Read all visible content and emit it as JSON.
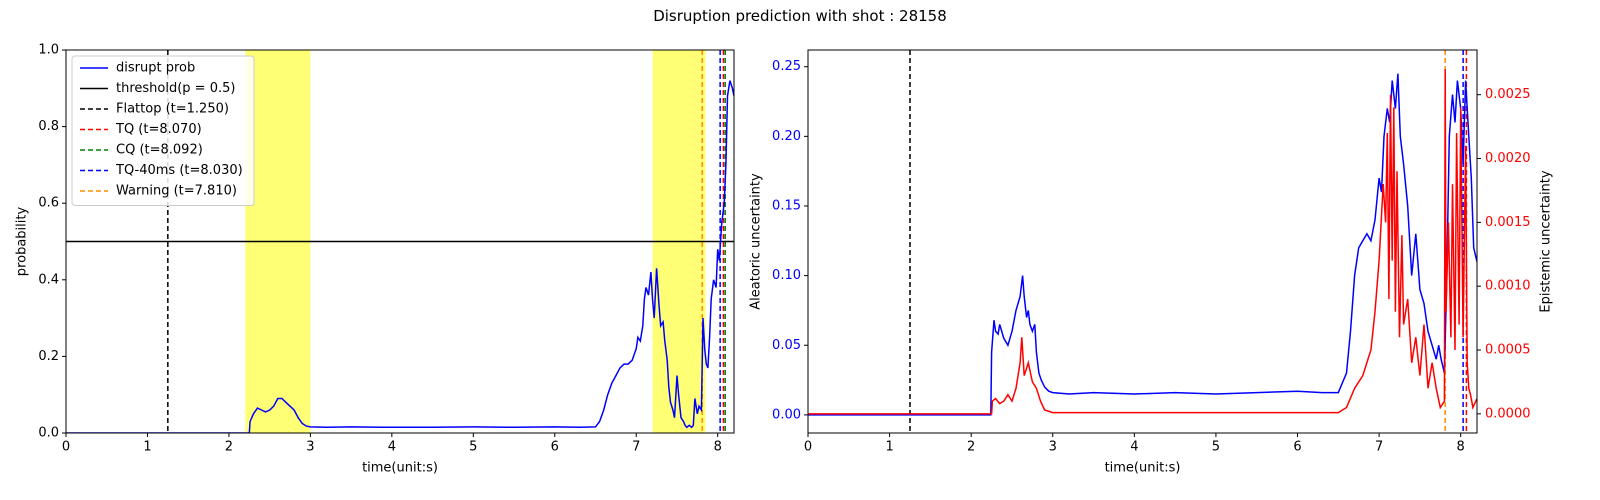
{
  "figure": {
    "title": "Disruption prediction with shot : 28158"
  },
  "colors": {
    "prob": "#0000ff",
    "threshold": "#000000",
    "flattop": "#000000",
    "tq": "#ff0000",
    "cq": "#008000",
    "tq40": "#0000ff",
    "warning": "#ff8c00",
    "highlight": "#ffff66",
    "aleatoric": "#0000ff",
    "epistemic": "#ff0000"
  },
  "chart_data": [
    {
      "type": "line",
      "xlabel": "time(unit:s)",
      "ylabel": "probability",
      "xlim": [
        0,
        8.2
      ],
      "ylim": [
        0,
        1.0
      ],
      "xticks": [
        "0",
        "1",
        "2",
        "3",
        "4",
        "5",
        "6",
        "7",
        "8"
      ],
      "yticks": [
        "0.0",
        "0.2",
        "0.4",
        "0.6",
        "0.8",
        "1.0"
      ],
      "highlight_spans": [
        [
          2.2,
          3.0
        ],
        [
          7.2,
          7.85
        ]
      ],
      "legend_position": "upper-left",
      "legend": [
        {
          "label": "disrupt prob",
          "style": "solid",
          "color": "#0000ff"
        },
        {
          "label": "threshold(p = 0.5)",
          "style": "solid",
          "color": "#000000"
        },
        {
          "label": "Flattop (t=1.250)",
          "style": "dashed",
          "color": "#000000"
        },
        {
          "label": "TQ (t=8.070)",
          "style": "dashed",
          "color": "#ff0000"
        },
        {
          "label": "CQ (t=8.092)",
          "style": "dashed",
          "color": "#008000"
        },
        {
          "label": "TQ-40ms (t=8.030)",
          "style": "dashed",
          "color": "#0000ff"
        },
        {
          "label": "Warning (t=7.810)",
          "style": "dashed",
          "color": "#ff8c00"
        }
      ],
      "threshold": 0.5,
      "vlines": [
        {
          "x": 1.25,
          "color": "#000000"
        },
        {
          "x": 7.81,
          "color": "#ff8c00"
        },
        {
          "x": 8.03,
          "color": "#0000ff"
        },
        {
          "x": 8.07,
          "color": "#ff0000"
        },
        {
          "x": 8.092,
          "color": "#008000"
        }
      ],
      "series": [
        {
          "x": [
            0,
            2.25,
            2.26,
            2.3,
            2.35,
            2.4,
            2.45,
            2.5,
            2.55,
            2.6,
            2.65,
            2.7,
            2.75,
            2.8,
            2.85,
            2.9,
            2.95,
            3.0,
            3.2,
            3.5,
            4.0,
            4.5,
            5.0,
            5.5,
            6.0,
            6.3,
            6.5,
            6.55,
            6.6,
            6.65,
            6.7,
            6.75,
            6.8,
            6.85,
            6.9,
            6.95,
            7.0,
            7.02,
            7.05,
            7.08,
            7.1,
            7.12,
            7.15,
            7.18,
            7.2,
            7.22,
            7.25,
            7.28,
            7.3,
            7.33,
            7.35,
            7.38,
            7.4,
            7.42,
            7.45,
            7.47,
            7.5,
            7.52,
            7.55,
            7.58,
            7.6,
            7.62,
            7.65,
            7.68,
            7.7,
            7.72,
            7.75,
            7.77,
            7.8,
            7.82,
            7.84,
            7.86,
            7.88,
            7.9,
            7.92,
            7.95,
            7.98,
            8.0,
            8.02,
            8.05,
            8.08,
            8.1,
            8.12,
            8.15,
            8.18,
            8.2
          ],
          "values": [
            0,
            0,
            0.03,
            0.05,
            0.065,
            0.06,
            0.055,
            0.06,
            0.07,
            0.09,
            0.09,
            0.08,
            0.07,
            0.06,
            0.04,
            0.025,
            0.018,
            0.016,
            0.015,
            0.016,
            0.015,
            0.015,
            0.016,
            0.015,
            0.016,
            0.015,
            0.016,
            0.03,
            0.06,
            0.1,
            0.13,
            0.15,
            0.17,
            0.18,
            0.18,
            0.19,
            0.22,
            0.25,
            0.24,
            0.28,
            0.35,
            0.38,
            0.36,
            0.42,
            0.35,
            0.3,
            0.43,
            0.33,
            0.28,
            0.29,
            0.24,
            0.19,
            0.12,
            0.08,
            0.06,
            0.04,
            0.15,
            0.1,
            0.04,
            0.03,
            0.02,
            0.015,
            0.02,
            0.015,
            0.02,
            0.09,
            0.05,
            0.07,
            0.06,
            0.3,
            0.22,
            0.18,
            0.17,
            0.25,
            0.35,
            0.4,
            0.38,
            0.48,
            0.45,
            0.55,
            0.6,
            0.7,
            0.88,
            0.92,
            0.9,
            0.88
          ]
        }
      ]
    },
    {
      "type": "line",
      "xlabel": "time(unit:s)",
      "ylabel": "Aleatoric uncertainty",
      "ylabel_right": "Epistemic uncertainty",
      "xlim": [
        0,
        8.2
      ],
      "ylim": [
        -0.013,
        0.262
      ],
      "ylim_right": [
        -0.00015,
        0.00285
      ],
      "xticks": [
        "0",
        "1",
        "2",
        "3",
        "4",
        "5",
        "6",
        "7",
        "8"
      ],
      "yticks": [
        "0.00",
        "0.05",
        "0.10",
        "0.15",
        "0.20",
        "0.25"
      ],
      "yticks_right": [
        "0.0000",
        "0.0005",
        "0.0010",
        "0.0015",
        "0.0020",
        "0.0025"
      ],
      "vlines": [
        {
          "x": 1.25,
          "color": "#000000"
        },
        {
          "x": 7.81,
          "color": "#ff8c00"
        },
        {
          "x": 8.03,
          "color": "#0000ff"
        },
        {
          "x": 8.07,
          "color": "#ff0000"
        }
      ],
      "series": [
        {
          "axis": "left",
          "x": [
            0,
            2.24,
            2.25,
            2.28,
            2.3,
            2.33,
            2.35,
            2.4,
            2.45,
            2.5,
            2.55,
            2.6,
            2.63,
            2.65,
            2.68,
            2.7,
            2.72,
            2.75,
            2.78,
            2.8,
            2.83,
            2.86,
            2.9,
            2.95,
            3.0,
            3.2,
            3.5,
            4.0,
            4.5,
            5.0,
            5.5,
            6.0,
            6.3,
            6.5,
            6.6,
            6.65,
            6.7,
            6.75,
            6.8,
            6.85,
            6.9,
            6.95,
            7.0,
            7.03,
            7.06,
            7.1,
            7.13,
            7.16,
            7.2,
            7.23,
            7.26,
            7.3,
            7.35,
            7.4,
            7.45,
            7.5,
            7.55,
            7.6,
            7.65,
            7.7,
            7.73,
            7.76,
            7.8,
            7.83,
            7.86,
            7.9,
            7.93,
            7.96,
            8.0,
            8.03,
            8.06,
            8.1,
            8.13,
            8.16,
            8.2
          ],
          "values": [
            0,
            0,
            0.045,
            0.068,
            0.06,
            0.058,
            0.065,
            0.055,
            0.05,
            0.06,
            0.075,
            0.085,
            0.1,
            0.085,
            0.07,
            0.075,
            0.065,
            0.06,
            0.065,
            0.045,
            0.03,
            0.025,
            0.02,
            0.017,
            0.016,
            0.015,
            0.016,
            0.015,
            0.016,
            0.015,
            0.016,
            0.017,
            0.016,
            0.016,
            0.03,
            0.06,
            0.1,
            0.12,
            0.125,
            0.13,
            0.125,
            0.14,
            0.17,
            0.16,
            0.2,
            0.22,
            0.21,
            0.24,
            0.22,
            0.245,
            0.2,
            0.18,
            0.15,
            0.1,
            0.13,
            0.09,
            0.08,
            0.06,
            0.05,
            0.04,
            0.05,
            0.04,
            0.03,
            0.1,
            0.2,
            0.23,
            0.21,
            0.24,
            0.22,
            0.18,
            0.24,
            0.2,
            0.17,
            0.12,
            0.11
          ]
        },
        {
          "axis": "right",
          "x": [
            0,
            2.25,
            2.26,
            2.3,
            2.35,
            2.4,
            2.45,
            2.5,
            2.55,
            2.6,
            2.62,
            2.65,
            2.7,
            2.75,
            2.8,
            2.85,
            2.9,
            3.0,
            3.5,
            4.0,
            4.5,
            5.0,
            5.5,
            6.0,
            6.5,
            6.6,
            6.7,
            6.8,
            6.9,
            6.95,
            7.0,
            7.05,
            7.08,
            7.1,
            7.12,
            7.14,
            7.16,
            7.18,
            7.2,
            7.22,
            7.25,
            7.28,
            7.3,
            7.35,
            7.4,
            7.45,
            7.5,
            7.55,
            7.6,
            7.65,
            7.7,
            7.75,
            7.8,
            7.81,
            7.82,
            7.85,
            7.88,
            7.9,
            7.93,
            7.95,
            7.98,
            8.0,
            8.03,
            8.06,
            8.08,
            8.1,
            8.12,
            8.15,
            8.2
          ],
          "values": [
            0,
            0,
            0.0001,
            0.00012,
            8e-05,
            0.0001,
            0.00015,
            0.0001,
            0.0002,
            0.0004,
            0.0006,
            0.0003,
            0.0004,
            0.00025,
            0.0002,
            0.0001,
            3e-05,
            1e-05,
            1e-05,
            1e-05,
            1e-05,
            1e-05,
            1e-05,
            1e-05,
            1e-05,
            5e-05,
            0.0002,
            0.0003,
            0.0005,
            0.0008,
            0.0012,
            0.0018,
            0.0015,
            0.0022,
            0.0009,
            0.0025,
            0.0012,
            0.0024,
            0.0008,
            0.0019,
            0.0006,
            0.0014,
            0.0007,
            0.0009,
            0.0004,
            0.0006,
            0.0003,
            0.0007,
            0.0002,
            0.0004,
            0.0002,
            5e-05,
            0.0001,
            0.0027,
            0.0008,
            0.0015,
            0.0006,
            0.0018,
            0.0005,
            0.0022,
            0.0007,
            0.0024,
            0.0006,
            0.0021,
            0.0004,
            0.0002,
            0.00015,
            5e-05,
            0.00012
          ]
        }
      ]
    }
  ]
}
